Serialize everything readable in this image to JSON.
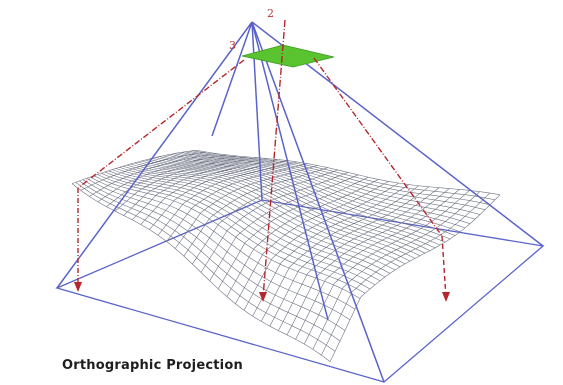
{
  "caption": "Orthographic Projection",
  "labels": {
    "ray_2": "2",
    "ray_3": "3"
  },
  "colors": {
    "frame_blue": "#5a63c9",
    "ray_red": "#b5272d",
    "sensor_green": "#59c42f",
    "mesh": "#6f7384"
  }
}
